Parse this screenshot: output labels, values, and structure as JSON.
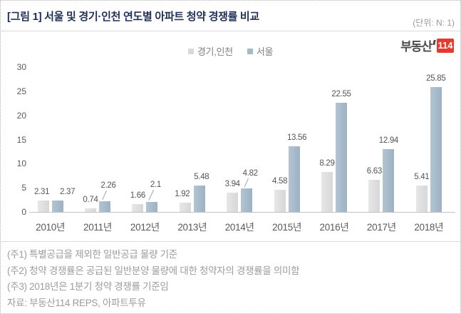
{
  "header": {
    "title": "[그림 1] 서울 및 경기·인천 연도별 아파트 청약 경쟁률 비교",
    "unit": "(단위: N: 1)"
  },
  "logo": {
    "text": "부동산",
    "badge": "114"
  },
  "chart_data": {
    "type": "bar",
    "title": "서울 및 경기·인천 연도별 아파트 청약 경쟁률 비교",
    "categories": [
      "2010년",
      "2011년",
      "2012년",
      "2013년",
      "2014년",
      "2015년",
      "2016년",
      "2017년",
      "2018년"
    ],
    "series": [
      {
        "name": "경기,인천",
        "color": "#d9d9d9",
        "values": [
          2.31,
          0.74,
          1.66,
          1.92,
          3.94,
          4.58,
          8.29,
          6.63,
          5.41
        ]
      },
      {
        "name": "서울",
        "color": "#a3b8ca",
        "values": [
          2.37,
          2.26,
          2.1,
          5.48,
          4.82,
          13.56,
          22.55,
          12.94,
          25.85
        ]
      }
    ],
    "xlabel": "",
    "ylabel": "",
    "ylim": [
      0,
      30
    ],
    "ytick_step": 5,
    "grid": false,
    "legend_position": "top-center",
    "data_labels": true
  },
  "notes": [
    "(주1) 특별공급을 제외한 일반공급 물량 기준",
    "(주2) 청약 경쟁률은 공급된 일반분양 물량에 대한  청약자의 경쟁률을 의미함",
    "(주3) 2018년은 1분기 청약 경쟁률 기준임",
    "자료: 부동산114 REPS, 아파트투유"
  ]
}
